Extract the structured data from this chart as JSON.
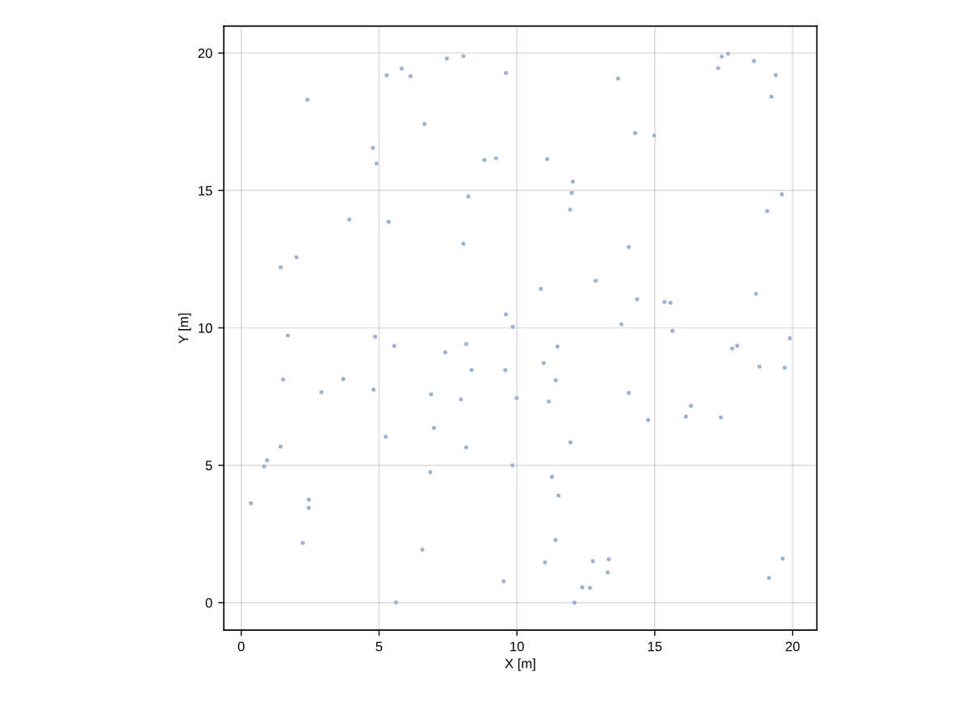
{
  "chart_data": {
    "type": "scatter",
    "xlabel": "X [m]",
    "ylabel": "Y [m]",
    "x": [
      0.35,
      0.83,
      0.94,
      1.43,
      1.43,
      1.52,
      1.69,
      2.0,
      2.23,
      2.4,
      2.45,
      2.45,
      2.91,
      3.7,
      3.92,
      4.78,
      4.8,
      4.86,
      4.91,
      5.24,
      5.28,
      5.35,
      5.55,
      5.61,
      5.82,
      6.14,
      6.57,
      6.65,
      6.86,
      6.89,
      6.99,
      7.4,
      7.46,
      7.97,
      8.06,
      8.06,
      8.16,
      8.16,
      8.24,
      8.36,
      8.82,
      9.24,
      9.52,
      9.58,
      9.6,
      9.6,
      9.84,
      9.85,
      9.99,
      10.87,
      10.97,
      11.02,
      11.1,
      11.16,
      11.27,
      11.4,
      11.41,
      11.47,
      11.51,
      11.93,
      11.94,
      11.99,
      12.03,
      12.09,
      12.37,
      12.65,
      12.75,
      12.86,
      13.29,
      13.33,
      13.67,
      13.79,
      14.06,
      14.06,
      14.29,
      14.36,
      14.76,
      14.98,
      15.35,
      15.57,
      15.64,
      16.13,
      16.31,
      17.3,
      17.4,
      17.43,
      17.66,
      17.81,
      17.99,
      18.6,
      18.67,
      18.8,
      19.08,
      19.14,
      19.23,
      19.39,
      19.61,
      19.64,
      19.71,
      19.9
    ],
    "values": [
      3.62,
      4.96,
      5.18,
      5.68,
      12.2,
      8.12,
      9.72,
      12.57,
      2.17,
      18.3,
      3.75,
      3.45,
      7.66,
      8.14,
      13.94,
      16.55,
      7.75,
      9.68,
      15.98,
      6.04,
      19.19,
      13.86,
      9.34,
      0.01,
      19.43,
      19.16,
      1.93,
      17.42,
      4.75,
      7.58,
      6.36,
      9.11,
      19.8,
      7.4,
      19.89,
      13.06,
      9.41,
      5.65,
      14.78,
      8.47,
      16.11,
      16.17,
      0.78,
      8.46,
      19.28,
      10.49,
      5.0,
      10.04,
      7.45,
      11.42,
      8.72,
      1.47,
      16.14,
      7.32,
      4.58,
      2.28,
      8.09,
      9.32,
      3.9,
      14.3,
      5.83,
      14.91,
      15.32,
      0.0,
      0.56,
      0.54,
      1.51,
      11.71,
      1.1,
      1.58,
      19.07,
      10.13,
      12.94,
      7.63,
      17.09,
      11.04,
      6.65,
      17.0,
      10.94,
      10.91,
      9.89,
      6.77,
      7.16,
      19.45,
      6.74,
      19.87,
      19.98,
      9.25,
      9.35,
      19.71,
      11.24,
      8.59,
      14.25,
      0.9,
      18.41,
      19.2,
      14.86,
      1.6,
      8.55,
      9.62
    ],
    "color": "#9db3cf",
    "marker": "circle",
    "xlim": [
      -0.63,
      20.88
    ],
    "ylim": [
      -1.0,
      20.98
    ],
    "xticks": [
      0,
      5,
      10,
      15,
      20
    ],
    "yticks": [
      0,
      5,
      10,
      15,
      20
    ],
    "grid": true
  }
}
